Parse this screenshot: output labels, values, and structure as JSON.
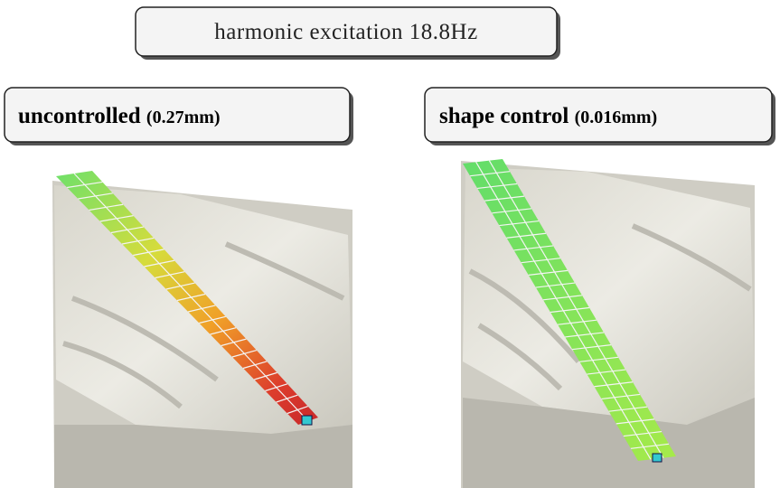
{
  "title": "harmonic excitation 18.8Hz",
  "panels": [
    {
      "label": "uncontrolled",
      "value_text": "(0.27mm)"
    },
    {
      "label": "shape control",
      "value_text": "(0.016mm)"
    }
  ]
}
